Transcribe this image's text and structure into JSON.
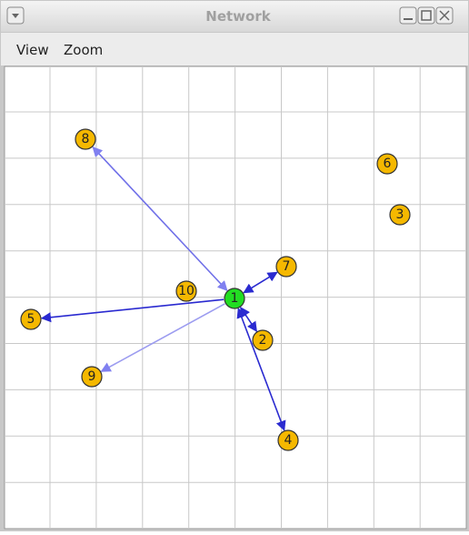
{
  "window": {
    "title": "Network"
  },
  "menu": [
    "View",
    "Zoom"
  ],
  "nodes": [
    {
      "label": "1"
    },
    {
      "label": "2"
    },
    {
      "label": "3"
    },
    {
      "label": "4"
    },
    {
      "label": "5"
    },
    {
      "label": "6"
    },
    {
      "label": "7"
    },
    {
      "label": "8"
    },
    {
      "label": "9"
    },
    {
      "label": "10"
    }
  ]
}
